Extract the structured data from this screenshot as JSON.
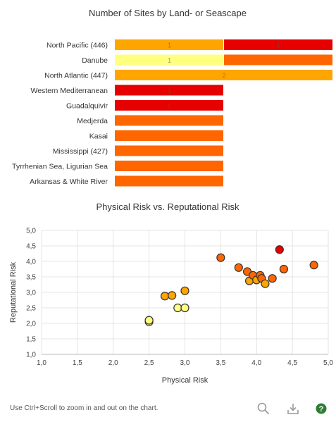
{
  "chart_data": [
    {
      "type": "bar",
      "title": "Number of Sites by Land- or Seascape",
      "stacked": true,
      "categories": [
        "North Pacific (446)",
        "Danube",
        "North Atlantic (447)",
        "Western Mediterranean",
        "Guadalquivir",
        "Medjerda",
        "Kasai",
        "Mississippi (427)",
        "Tyrrhenian Sea, Ligurian Sea",
        "Arkansas & White River"
      ],
      "series": [
        {
          "color": "#FFA500",
          "values": [
            1,
            0,
            2,
            0,
            0,
            0,
            0,
            0,
            0,
            0
          ]
        },
        {
          "color": "#FFFF80",
          "values": [
            0,
            1,
            0,
            0,
            0,
            0,
            0,
            0,
            0,
            0
          ]
        },
        {
          "color": "#FF6600",
          "values": [
            0,
            1,
            0,
            0,
            0,
            1,
            1,
            1,
            1,
            1
          ]
        },
        {
          "color": "#E60000",
          "values": [
            1,
            0,
            0,
            1,
            1,
            0,
            0,
            0,
            0,
            0
          ]
        }
      ],
      "segment_labels": [
        "1",
        "1",
        "1",
        "",
        "2",
        "1",
        "1",
        "",
        "",
        "",
        "",
        ""
      ],
      "xlim": [
        0,
        2
      ]
    },
    {
      "type": "scatter",
      "title": "Physical Risk vs. Reputational Risk",
      "xlabel": "Physical Risk",
      "ylabel": "Reputational Risk",
      "xlim": [
        1,
        5
      ],
      "ylim": [
        1,
        5
      ],
      "x_ticks": [
        "1,0",
        "1,5",
        "2,0",
        "2,5",
        "3,0",
        "3,5",
        "4,0",
        "4,5",
        "5,0"
      ],
      "y_ticks": [
        "1,0",
        "1,5",
        "2,0",
        "2,5",
        "3,0",
        "3,5",
        "4,0",
        "4,5",
        "5,0"
      ],
      "grid": true,
      "points": [
        {
          "x": 2.5,
          "y": 2.05,
          "color": "#FFFF80"
        },
        {
          "x": 2.5,
          "y": 2.1,
          "color": "#FFFF80"
        },
        {
          "x": 2.9,
          "y": 2.5,
          "color": "#FFFF80"
        },
        {
          "x": 3.0,
          "y": 2.5,
          "color": "#FFFF80"
        },
        {
          "x": 2.72,
          "y": 2.88,
          "color": "#FFA500"
        },
        {
          "x": 2.82,
          "y": 2.9,
          "color": "#FFA500"
        },
        {
          "x": 3.0,
          "y": 3.05,
          "color": "#FFA500"
        },
        {
          "x": 3.5,
          "y": 4.12,
          "color": "#FF6600"
        },
        {
          "x": 3.75,
          "y": 3.8,
          "color": "#FF6600"
        },
        {
          "x": 3.87,
          "y": 3.67,
          "color": "#FF6600"
        },
        {
          "x": 3.9,
          "y": 3.37,
          "color": "#FFA500"
        },
        {
          "x": 3.95,
          "y": 3.55,
          "color": "#FF6600"
        },
        {
          "x": 4.0,
          "y": 3.4,
          "color": "#FFA500"
        },
        {
          "x": 4.05,
          "y": 3.55,
          "color": "#FF6600"
        },
        {
          "x": 4.07,
          "y": 3.45,
          "color": "#FF6600"
        },
        {
          "x": 4.12,
          "y": 3.28,
          "color": "#FFA500"
        },
        {
          "x": 4.22,
          "y": 3.45,
          "color": "#FF6600"
        },
        {
          "x": 4.32,
          "y": 4.38,
          "color": "#E60000"
        },
        {
          "x": 4.38,
          "y": 3.75,
          "color": "#FF6600"
        },
        {
          "x": 4.8,
          "y": 3.88,
          "color": "#FF6600"
        }
      ]
    }
  ],
  "footer": {
    "hint": "Use Ctrl+Scroll to zoom in and out on the chart.",
    "tools": [
      "search-icon",
      "download-icon",
      "help-icon"
    ]
  }
}
